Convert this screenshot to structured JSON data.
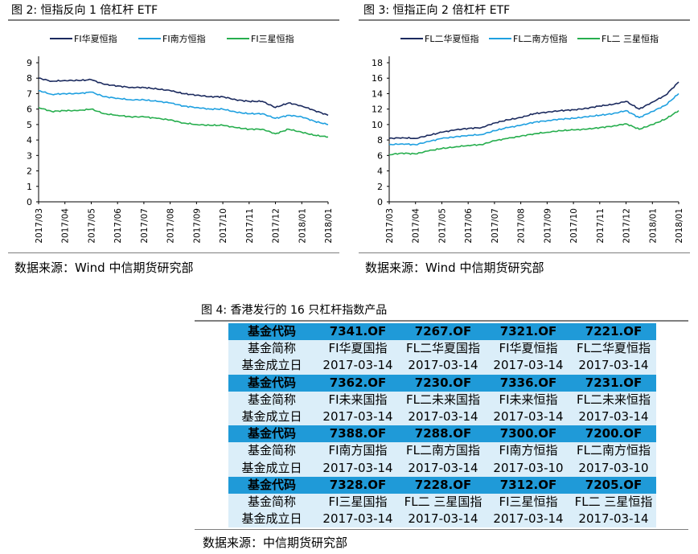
{
  "figure2": {
    "title": "图 2:   恒指反向 1 倍杠杆 ETF",
    "source": "数据来源：Wind  中信期货研究部",
    "chart_data": {
      "type": "line",
      "ylim": [
        0,
        9
      ],
      "yticks": [
        0,
        1,
        2,
        3,
        4,
        5,
        6,
        7,
        8,
        9
      ],
      "xticks": [
        "2017/03",
        "2017/04",
        "2017/05",
        "2017/06",
        "2017/07",
        "2017/08",
        "2017/09",
        "2017/10",
        "2017/11",
        "2017/12",
        "2018/01",
        "2018/01"
      ],
      "x": [
        0,
        0.5,
        1,
        1.5,
        2,
        2.5,
        3,
        3.5,
        4,
        4.5,
        5,
        5.5,
        6,
        6.5,
        7,
        7.5,
        8,
        8.5,
        9,
        9.5,
        10,
        10.5,
        11
      ],
      "series": [
        {
          "name": "FI华夏恒指",
          "color": "#1b2a5e",
          "values": [
            8.0,
            7.8,
            7.85,
            7.85,
            7.9,
            7.6,
            7.5,
            7.4,
            7.4,
            7.3,
            7.2,
            7.0,
            6.9,
            6.8,
            6.8,
            6.6,
            6.5,
            6.5,
            6.1,
            6.4,
            6.2,
            5.9,
            5.6
          ]
        },
        {
          "name": "FI南方恒指",
          "color": "#1fa0e0",
          "values": [
            7.2,
            6.95,
            7.0,
            7.0,
            7.1,
            6.8,
            6.7,
            6.6,
            6.6,
            6.5,
            6.4,
            6.2,
            6.1,
            6.0,
            6.0,
            5.8,
            5.7,
            5.7,
            5.4,
            5.6,
            5.5,
            5.2,
            5.0
          ]
        },
        {
          "name": "FI三星恒指",
          "color": "#27ae4e",
          "values": [
            6.1,
            5.85,
            5.9,
            5.9,
            6.0,
            5.7,
            5.6,
            5.5,
            5.5,
            5.4,
            5.3,
            5.1,
            5.0,
            4.95,
            4.95,
            4.8,
            4.7,
            4.7,
            4.4,
            4.7,
            4.5,
            4.3,
            4.2
          ]
        }
      ]
    }
  },
  "figure3": {
    "title": "图 3:      恒指正向 2 倍杠杆 ETF",
    "source": "数据来源：Wind  中信期货研究部",
    "chart_data": {
      "type": "line",
      "ylim": [
        0,
        18
      ],
      "yticks": [
        0,
        2,
        4,
        6,
        8,
        10,
        12,
        14,
        16,
        18
      ],
      "xticks": [
        "2017/03",
        "2017/04",
        "2017/05",
        "2017/06",
        "2017/07",
        "2017/08",
        "2017/09",
        "2017/10",
        "2017/11",
        "2017/12",
        "2018/01",
        "2018/01"
      ],
      "x": [
        0,
        0.5,
        1,
        1.5,
        2,
        2.5,
        3,
        3.5,
        4,
        4.5,
        5,
        5.5,
        6,
        6.5,
        7,
        7.5,
        8,
        8.5,
        9,
        9.5,
        10,
        10.5,
        11
      ],
      "series": [
        {
          "name": "FL二华夏恒指",
          "color": "#1b2a5e",
          "values": [
            8.2,
            8.3,
            8.2,
            8.6,
            9.0,
            9.3,
            9.5,
            9.6,
            10.2,
            10.6,
            10.9,
            11.4,
            11.6,
            11.8,
            11.9,
            12.1,
            12.4,
            12.6,
            13.0,
            12.0,
            12.9,
            13.8,
            15.5
          ]
        },
        {
          "name": "FL二南方恒指",
          "color": "#1fa0e0",
          "values": [
            7.4,
            7.5,
            7.4,
            7.8,
            8.2,
            8.4,
            8.6,
            8.7,
            9.2,
            9.6,
            9.9,
            10.3,
            10.5,
            10.7,
            10.8,
            11.0,
            11.2,
            11.4,
            11.8,
            10.9,
            11.7,
            12.5,
            14.0
          ]
        },
        {
          "name": "FL二 三星恒指",
          "color": "#27ae4e",
          "values": [
            6.1,
            6.3,
            6.2,
            6.6,
            6.9,
            7.1,
            7.3,
            7.4,
            7.9,
            8.2,
            8.5,
            8.8,
            9.0,
            9.2,
            9.3,
            9.4,
            9.6,
            9.8,
            10.1,
            9.4,
            10.0,
            10.7,
            11.8
          ]
        }
      ]
    }
  },
  "figure4": {
    "title": "图 4:      香港发行的 16 只杠杆指数产品",
    "source": "数据来源：中信期货研究部",
    "groups": [
      {
        "code_label": "基金代码",
        "codes": [
          "7341.OF",
          "7267.OF",
          "7321.OF",
          "7221.OF"
        ],
        "name_label": "基金简称",
        "names": [
          "FI华夏国指",
          "FL二华夏国指",
          "FI华夏恒指",
          "FL二华夏恒指"
        ],
        "date_label": "基金成立日",
        "dates": [
          "2017-03-14",
          "2017-03-14",
          "2017-03-14",
          "2017-03-14"
        ]
      },
      {
        "code_label": "基金代码",
        "codes": [
          "7362.OF",
          "7230.OF",
          "7336.OF",
          "7231.OF"
        ],
        "name_label": "基金简称",
        "names": [
          "FI未来国指",
          "FL二未来国指",
          "FI未来恒指",
          "FL二未来恒指"
        ],
        "date_label": "基金成立日",
        "dates": [
          "2017-03-14",
          "2017-03-14",
          "2017-03-14",
          "2017-03-14"
        ]
      },
      {
        "code_label": "基金代码",
        "codes": [
          "7388.OF",
          "7288.OF",
          "7300.OF",
          "7200.OF"
        ],
        "name_label": "基金简称",
        "names": [
          "FI南方国指",
          "FL二南方国指",
          "FI南方恒指",
          "FL二南方恒指"
        ],
        "date_label": "基金成立日",
        "dates": [
          "2017-03-14",
          "2017-03-14",
          "2017-03-10",
          "2017-03-10"
        ]
      },
      {
        "code_label": "基金代码",
        "codes": [
          "7328.OF",
          "7228.OF",
          "7312.OF",
          "7205.OF"
        ],
        "name_label": "基金简称",
        "names": [
          "FI三星国指",
          "FL二 三星国指",
          "FI三星恒指",
          "FL二 三星恒指"
        ],
        "date_label": "基金成立日",
        "dates": [
          "2017-03-14",
          "2017-03-14",
          "2017-03-14",
          "2017-03-14"
        ]
      }
    ]
  }
}
